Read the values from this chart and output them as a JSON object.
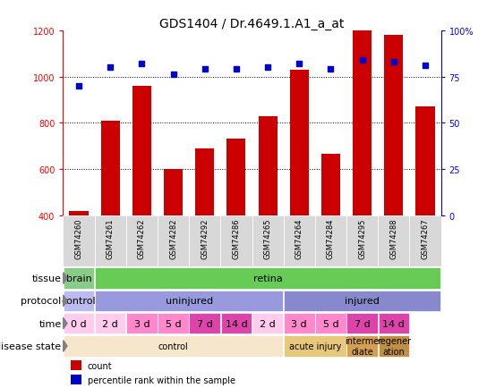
{
  "title": "GDS1404 / Dr.4649.1.A1_a_at",
  "samples": [
    "GSM74260",
    "GSM74261",
    "GSM74262",
    "GSM74282",
    "GSM74292",
    "GSM74286",
    "GSM74265",
    "GSM74264",
    "GSM74284",
    "GSM74295",
    "GSM74288",
    "GSM74267"
  ],
  "counts": [
    420,
    810,
    960,
    600,
    690,
    730,
    830,
    1030,
    665,
    1200,
    1180,
    870
  ],
  "percentiles": [
    70,
    80,
    82,
    76,
    79,
    79,
    80,
    82,
    79,
    84,
    83,
    81
  ],
  "ylim_left": [
    400,
    1200
  ],
  "ylim_right": [
    0,
    100
  ],
  "yticks_left": [
    400,
    600,
    800,
    1000,
    1200
  ],
  "yticks_right": [
    0,
    25,
    50,
    75,
    100
  ],
  "bar_color": "#cc0000",
  "dot_color": "#0000cc",
  "grid_lines": [
    600,
    800,
    1000
  ],
  "tissue_row": {
    "label": "tissue",
    "segments": [
      {
        "text": "brain",
        "span": [
          0,
          1
        ],
        "color": "#88cc88"
      },
      {
        "text": "retina",
        "span": [
          1,
          12
        ],
        "color": "#66cc55"
      }
    ]
  },
  "protocol_row": {
    "label": "protocol",
    "segments": [
      {
        "text": "control",
        "span": [
          0,
          1
        ],
        "color": "#bbbbee"
      },
      {
        "text": "uninjured",
        "span": [
          1,
          7
        ],
        "color": "#9999dd"
      },
      {
        "text": "injured",
        "span": [
          7,
          12
        ],
        "color": "#8888cc"
      }
    ]
  },
  "time_row": {
    "label": "time",
    "segments": [
      {
        "text": "0 d",
        "span": [
          0,
          1
        ],
        "color": "#ffccee"
      },
      {
        "text": "2 d",
        "span": [
          1,
          2
        ],
        "color": "#ffccee"
      },
      {
        "text": "3 d",
        "span": [
          2,
          3
        ],
        "color": "#ff88cc"
      },
      {
        "text": "5 d",
        "span": [
          3,
          4
        ],
        "color": "#ff88cc"
      },
      {
        "text": "7 d",
        "span": [
          4,
          5
        ],
        "color": "#dd44aa"
      },
      {
        "text": "14 d",
        "span": [
          5,
          6
        ],
        "color": "#dd44aa"
      },
      {
        "text": "2 d",
        "span": [
          6,
          7
        ],
        "color": "#ffccee"
      },
      {
        "text": "3 d",
        "span": [
          7,
          8
        ],
        "color": "#ff88cc"
      },
      {
        "text": "5 d",
        "span": [
          8,
          9
        ],
        "color": "#ff88cc"
      },
      {
        "text": "7 d",
        "span": [
          9,
          10
        ],
        "color": "#dd44aa"
      },
      {
        "text": "14 d",
        "span": [
          10,
          11
        ],
        "color": "#dd44aa"
      }
    ]
  },
  "disease_row": {
    "label": "disease state",
    "segments": [
      {
        "text": "control",
        "span": [
          0,
          7
        ],
        "color": "#f5e6cc"
      },
      {
        "text": "acute injury",
        "span": [
          7,
          9
        ],
        "color": "#e8c87a"
      },
      {
        "text": "interme\ndiate",
        "span": [
          9,
          10
        ],
        "color": "#d4a050"
      },
      {
        "text": "regener\nation",
        "span": [
          10,
          11
        ],
        "color": "#c09040"
      }
    ]
  },
  "n_samples": 12,
  "label_fontsize": 8,
  "tick_fontsize": 7,
  "title_fontsize": 10
}
